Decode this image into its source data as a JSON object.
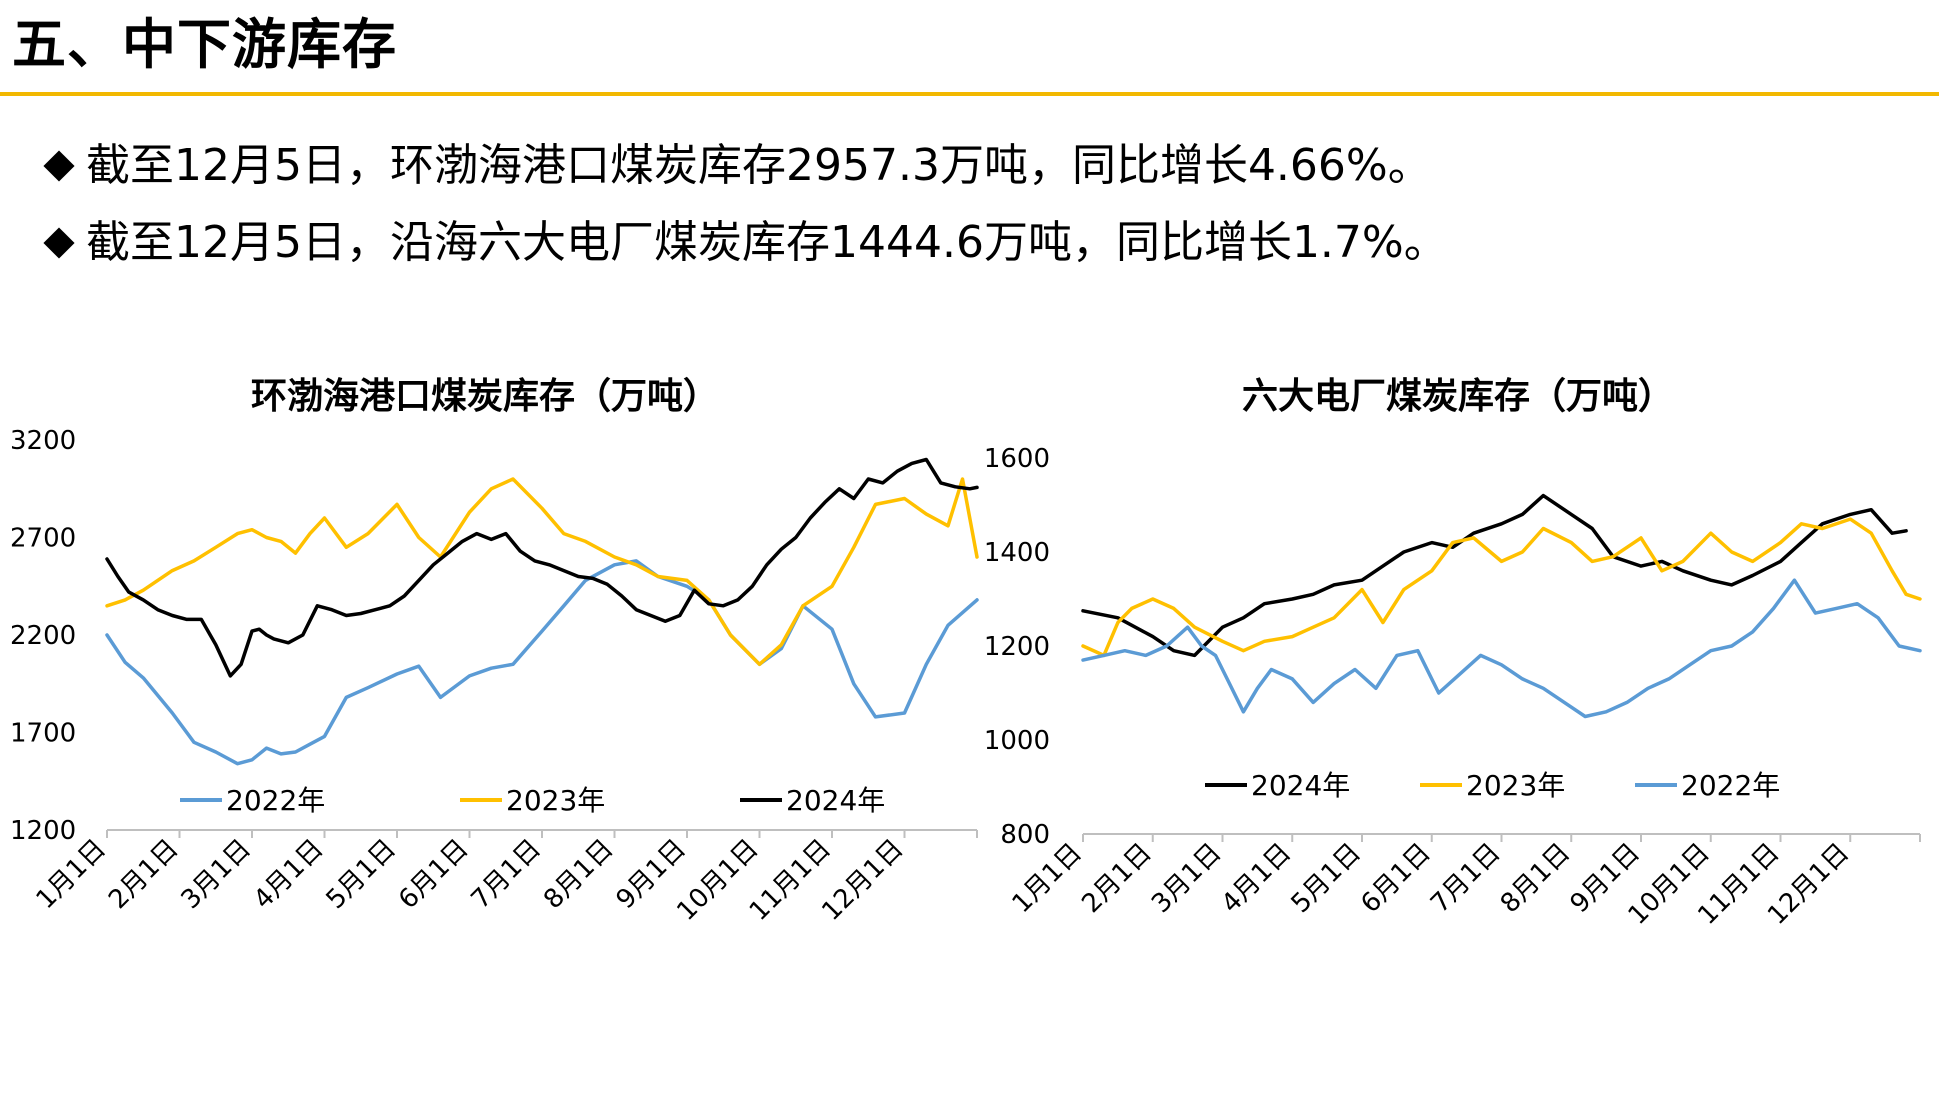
{
  "page": {
    "title": "五、中下游库存",
    "bullets": [
      "截至12月5日，环渤海港口煤炭库存2957.3万吨，同比增长4.66%。",
      "截至12月5日，沿海六大电厂煤炭库存1444.6万吨，同比增长1.7%。"
    ]
  },
  "chart_data": [
    {
      "type": "line",
      "title": "环渤海港口煤炭库存（万吨）",
      "xlabel": "",
      "ylabel": "",
      "ylim": [
        1200,
        3200
      ],
      "yticks": [
        1200,
        1700,
        2200,
        2700,
        3200
      ],
      "xticks": [
        "1月1日",
        "2月1日",
        "3月1日",
        "4月1日",
        "5月1日",
        "6月1日",
        "7月1日",
        "8月1日",
        "9月1日",
        "10月1日",
        "11月1日",
        "12月1日"
      ],
      "legend_position": "bottom",
      "colors": {
        "2022年": "#5b9bd5",
        "2023年": "#ffc000",
        "2024年": "#000000"
      },
      "series": [
        {
          "name": "2022年",
          "x": [
            0,
            0.25,
            0.5,
            0.9,
            1.2,
            1.5,
            1.8,
            2.0,
            2.2,
            2.4,
            2.6,
            2.8,
            3.0,
            3.3,
            3.6,
            4.0,
            4.3,
            4.6,
            5.0,
            5.3,
            5.6,
            6.0,
            6.3,
            6.6,
            7.0,
            7.3,
            7.6,
            8.0,
            8.3,
            8.6,
            9.0,
            9.3,
            9.6,
            10.0,
            10.3,
            10.6,
            11.0,
            11.3,
            11.6,
            12.0
          ],
          "values": [
            2200,
            2060,
            1980,
            1800,
            1650,
            1600,
            1540,
            1560,
            1620,
            1590,
            1600,
            1640,
            1680,
            1880,
            1930,
            2000,
            2040,
            1880,
            1990,
            2030,
            2050,
            2220,
            2350,
            2480,
            2560,
            2580,
            2500,
            2450,
            2380,
            2200,
            2050,
            2130,
            2350,
            2230,
            1950,
            1780,
            1800,
            2050,
            2250,
            2380
          ]
        },
        {
          "name": "2023年",
          "x": [
            0,
            0.25,
            0.5,
            0.9,
            1.2,
            1.5,
            1.8,
            2.0,
            2.2,
            2.4,
            2.6,
            2.8,
            3.0,
            3.3,
            3.6,
            4.0,
            4.3,
            4.6,
            5.0,
            5.3,
            5.6,
            6.0,
            6.3,
            6.6,
            7.0,
            7.3,
            7.6,
            8.0,
            8.3,
            8.6,
            9.0,
            9.3,
            9.6,
            10.0,
            10.3,
            10.6,
            11.0,
            11.3,
            11.6,
            11.8,
            12.0
          ],
          "values": [
            2350,
            2380,
            2430,
            2530,
            2580,
            2650,
            2720,
            2740,
            2700,
            2680,
            2620,
            2720,
            2800,
            2650,
            2720,
            2870,
            2700,
            2600,
            2830,
            2950,
            3000,
            2850,
            2720,
            2680,
            2600,
            2560,
            2500,
            2480,
            2380,
            2200,
            2050,
            2150,
            2350,
            2450,
            2650,
            2870,
            2900,
            2820,
            2760,
            3000,
            2600
          ]
        },
        {
          "name": "2024年",
          "x": [
            0,
            0.15,
            0.3,
            0.5,
            0.7,
            0.9,
            1.1,
            1.3,
            1.5,
            1.7,
            1.85,
            2.0,
            2.1,
            2.2,
            2.3,
            2.5,
            2.7,
            2.9,
            3.1,
            3.3,
            3.5,
            3.7,
            3.9,
            4.1,
            4.3,
            4.5,
            4.7,
            4.9,
            5.1,
            5.3,
            5.5,
            5.7,
            5.9,
            6.1,
            6.3,
            6.5,
            6.7,
            6.9,
            7.1,
            7.3,
            7.5,
            7.7,
            7.9,
            8.1,
            8.3,
            8.5,
            8.7,
            8.9,
            9.1,
            9.3,
            9.5,
            9.7,
            9.9,
            10.1,
            10.3,
            10.5,
            10.7,
            10.9,
            11.1,
            11.3,
            11.5,
            11.7,
            11.9,
            12.0
          ],
          "values": [
            2590,
            2500,
            2420,
            2380,
            2330,
            2300,
            2280,
            2280,
            2150,
            1990,
            2050,
            2220,
            2230,
            2200,
            2180,
            2160,
            2200,
            2350,
            2330,
            2300,
            2310,
            2330,
            2350,
            2400,
            2480,
            2560,
            2620,
            2680,
            2720,
            2690,
            2720,
            2630,
            2580,
            2560,
            2530,
            2500,
            2490,
            2460,
            2400,
            2330,
            2300,
            2270,
            2300,
            2430,
            2360,
            2350,
            2380,
            2450,
            2560,
            2640,
            2700,
            2800,
            2880,
            2950,
            2900,
            3000,
            2980,
            3040,
            3080,
            3100,
            2980,
            2960,
            2950,
            2957
          ]
        }
      ]
    },
    {
      "type": "line",
      "title": "六大电厂煤炭库存（万吨）",
      "xlabel": "",
      "ylabel": "",
      "ylim": [
        800,
        1600
      ],
      "yticks": [
        800,
        1000,
        1200,
        1400,
        1600
      ],
      "xticks": [
        "1月1日",
        "2月1日",
        "3月1日",
        "4月1日",
        "5月1日",
        "6月1日",
        "7月1日",
        "8月1日",
        "9月1日",
        "10月1日",
        "11月1日",
        "12月1日"
      ],
      "legend_position": "bottom",
      "colors": {
        "2024年": "#000000",
        "2023年": "#ffc000",
        "2022年": "#5b9bd5"
      },
      "series": [
        {
          "name": "2024年",
          "x": [
            0,
            0.5,
            1.0,
            1.3,
            1.6,
            2.0,
            2.3,
            2.6,
            3.0,
            3.3,
            3.6,
            4.0,
            4.3,
            4.6,
            5.0,
            5.3,
            5.6,
            6.0,
            6.3,
            6.6,
            7.0,
            7.3,
            7.6,
            8.0,
            8.3,
            8.6,
            9.0,
            9.3,
            9.6,
            10.0,
            10.3,
            10.6,
            11.0,
            11.3,
            11.6,
            11.8
          ],
          "values": [
            1275,
            1260,
            1220,
            1190,
            1180,
            1240,
            1260,
            1290,
            1300,
            1310,
            1330,
            1340,
            1370,
            1400,
            1420,
            1410,
            1440,
            1460,
            1480,
            1520,
            1480,
            1450,
            1390,
            1370,
            1380,
            1360,
            1340,
            1330,
            1350,
            1380,
            1420,
            1460,
            1480,
            1490,
            1440,
            1445
          ]
        },
        {
          "name": "2023年",
          "x": [
            0,
            0.3,
            0.5,
            0.7,
            1.0,
            1.3,
            1.6,
            2.0,
            2.3,
            2.6,
            3.0,
            3.3,
            3.6,
            4.0,
            4.3,
            4.6,
            5.0,
            5.3,
            5.6,
            6.0,
            6.3,
            6.6,
            7.0,
            7.3,
            7.6,
            8.0,
            8.3,
            8.6,
            9.0,
            9.3,
            9.6,
            10.0,
            10.3,
            10.6,
            11.0,
            11.3,
            11.6,
            11.8,
            12.0
          ],
          "values": [
            1200,
            1180,
            1250,
            1280,
            1300,
            1280,
            1240,
            1210,
            1190,
            1210,
            1220,
            1240,
            1260,
            1320,
            1250,
            1320,
            1360,
            1420,
            1430,
            1380,
            1400,
            1450,
            1420,
            1380,
            1390,
            1430,
            1360,
            1380,
            1440,
            1400,
            1380,
            1420,
            1460,
            1450,
            1470,
            1440,
            1360,
            1310,
            1300
          ]
        },
        {
          "name": "2022年",
          "x": [
            0,
            0.3,
            0.6,
            0.9,
            1.2,
            1.5,
            1.7,
            1.9,
            2.1,
            2.3,
            2.5,
            2.7,
            3.0,
            3.3,
            3.6,
            3.9,
            4.2,
            4.5,
            4.8,
            5.1,
            5.4,
            5.7,
            6.0,
            6.3,
            6.6,
            6.9,
            7.2,
            7.5,
            7.8,
            8.1,
            8.4,
            8.7,
            9.0,
            9.3,
            9.6,
            9.9,
            10.2,
            10.5,
            10.8,
            11.1,
            11.4,
            11.7,
            12.0
          ],
          "values": [
            1170,
            1180,
            1190,
            1180,
            1200,
            1240,
            1200,
            1180,
            1120,
            1060,
            1110,
            1150,
            1130,
            1080,
            1120,
            1150,
            1110,
            1180,
            1190,
            1100,
            1140,
            1180,
            1160,
            1130,
            1110,
            1080,
            1050,
            1060,
            1080,
            1110,
            1130,
            1160,
            1190,
            1200,
            1230,
            1280,
            1340,
            1270,
            1280,
            1290,
            1260,
            1200,
            1190
          ]
        }
      ]
    }
  ]
}
